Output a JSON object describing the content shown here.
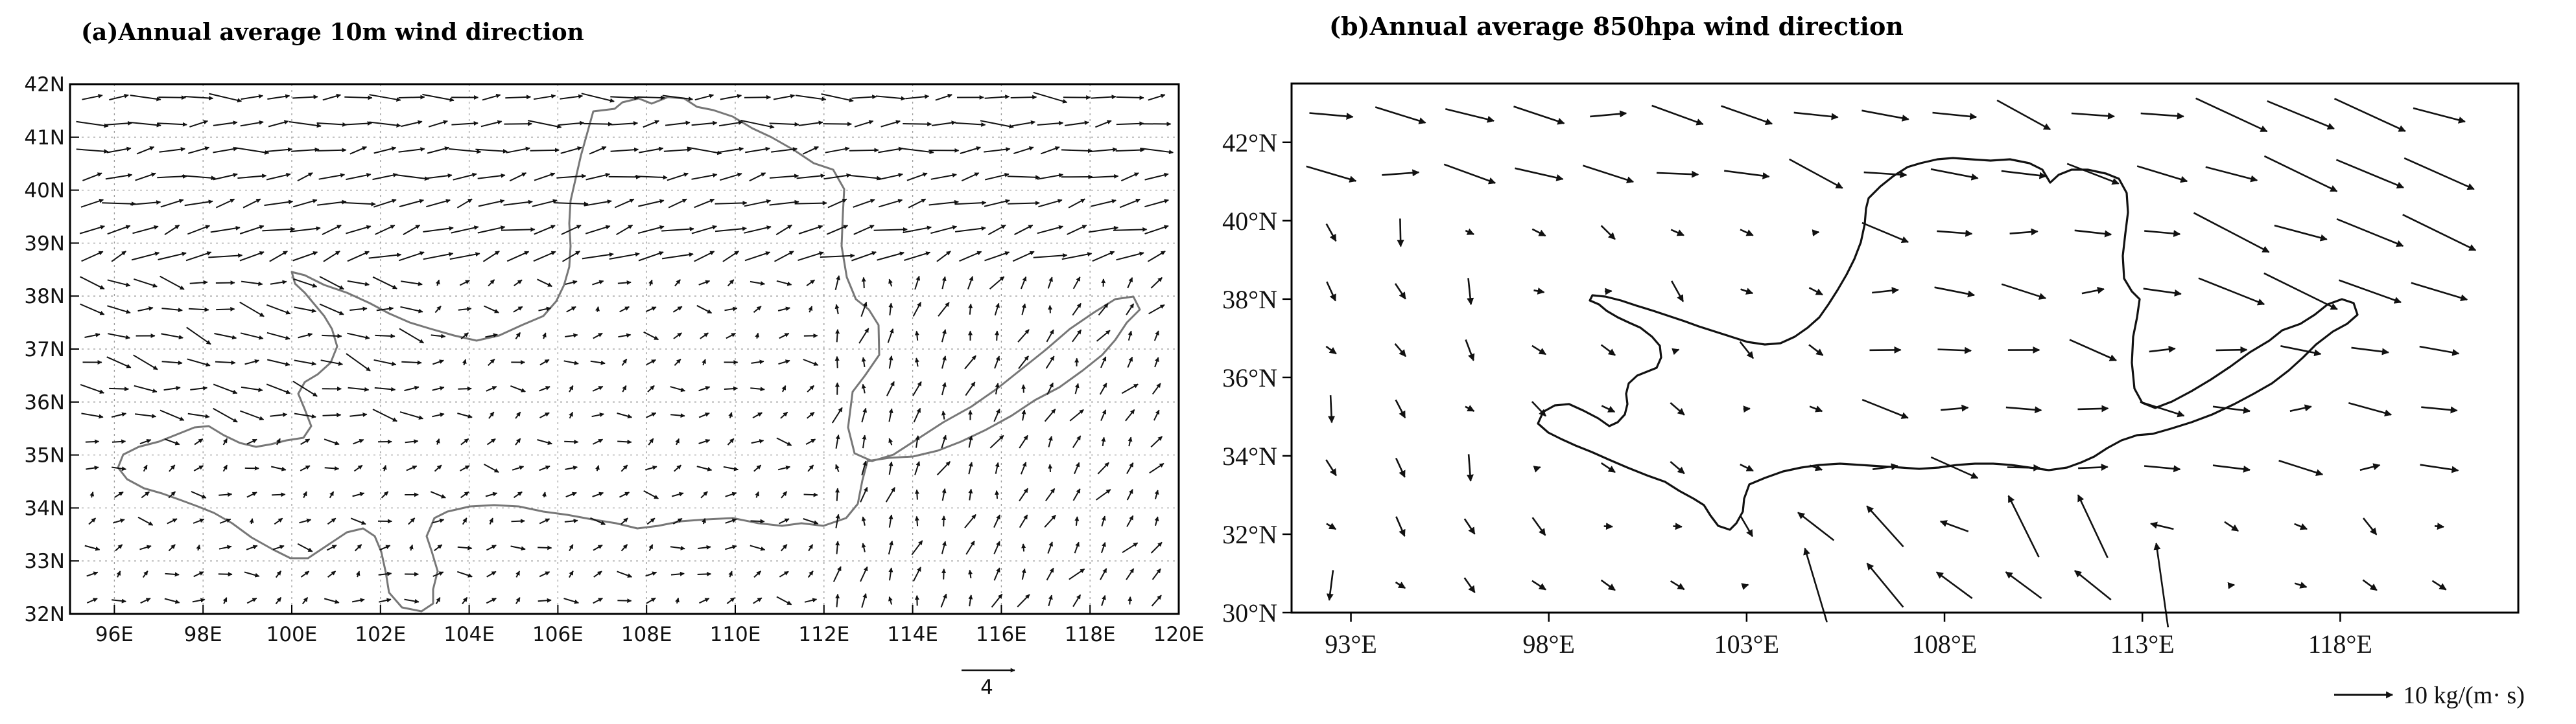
{
  "chart_data": [
    {
      "type": "vector-field",
      "title": "(a)Annual average 10m wind direction",
      "x_ticks": [
        "96E",
        "98E",
        "100E",
        "102E",
        "104E",
        "106E",
        "108E",
        "110E",
        "112E",
        "114E",
        "116E",
        "118E",
        "120E"
      ],
      "x_tick_values": [
        96,
        98,
        100,
        102,
        104,
        106,
        108,
        110,
        112,
        114,
        116,
        118,
        120
      ],
      "y_ticks": [
        "32N",
        "33N",
        "34N",
        "35N",
        "36N",
        "37N",
        "38N",
        "39N",
        "40N",
        "41N",
        "42N"
      ],
      "y_tick_values": [
        32,
        33,
        34,
        35,
        36,
        37,
        38,
        39,
        40,
        41,
        42
      ],
      "xlim": [
        95,
        120
      ],
      "ylim": [
        32,
        42
      ],
      "grid": "dotted",
      "reference_vector_label": "4",
      "reference_vector_value": 4,
      "colors": {
        "vectors": "#111111",
        "boundary": "#777777",
        "frame": "#000000"
      }
    },
    {
      "type": "vector-field",
      "title": "(b)Annual average 850hpa wind direction",
      "x_ticks": [
        "93°E",
        "98°E",
        "103°E",
        "108°E",
        "113°E",
        "118°E"
      ],
      "x_tick_values": [
        93,
        98,
        103,
        108,
        113,
        118
      ],
      "y_ticks": [
        "30°N",
        "32°N",
        "34°N",
        "36°N",
        "38°N",
        "40°N",
        "42°N"
      ],
      "y_tick_values": [
        30,
        32,
        34,
        36,
        38,
        40,
        42
      ],
      "xlim": [
        91.5,
        122.5
      ],
      "ylim": [
        30,
        43.5
      ],
      "grid": "off",
      "legend_label": "10 kg/(m· s)",
      "legend_position": "bottom-right",
      "reference_vector_value": 10,
      "colors": {
        "vectors": "#111111",
        "boundary": "#111111",
        "frame": "#000000"
      }
    }
  ]
}
